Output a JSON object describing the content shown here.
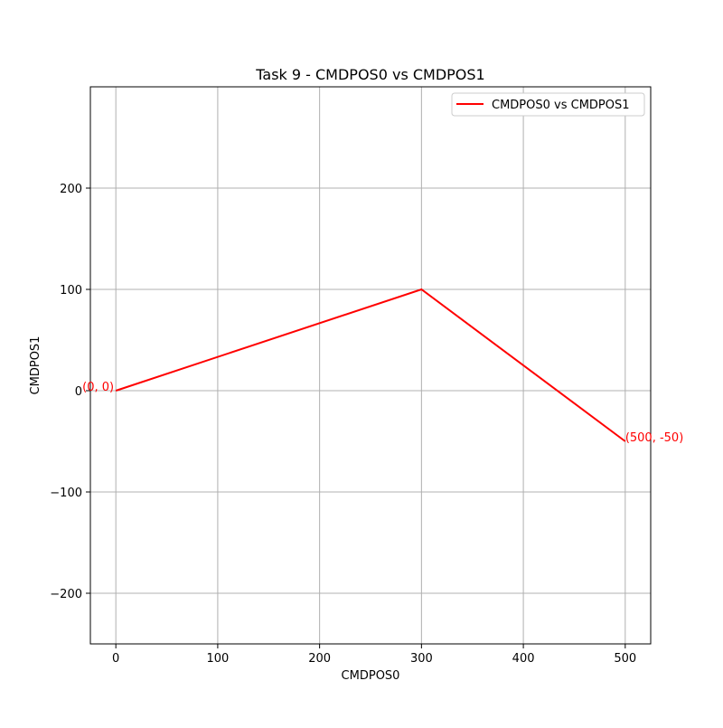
{
  "chart_data": {
    "type": "line",
    "title": "Task 9 - CMDPOS0 vs CMDPOS1",
    "xlabel": "CMDPOS0",
    "ylabel": "CMDPOS1",
    "xlim": [
      -25,
      525
    ],
    "ylim": [
      -250,
      300
    ],
    "xticks": [
      0,
      100,
      200,
      300,
      400,
      500
    ],
    "yticks": [
      -200,
      -100,
      0,
      100,
      200
    ],
    "grid": true,
    "legend_position": "top-right",
    "series": [
      {
        "name": "CMDPOS0 vs CMDPOS1",
        "color": "#ff0000",
        "x": [
          0,
          300,
          500
        ],
        "y": [
          0,
          100,
          -50
        ]
      }
    ],
    "annotations": [
      {
        "text": "(0, 0)",
        "x": 0,
        "y": 0,
        "color": "#ff0000"
      },
      {
        "text": "(500, -50)",
        "x": 500,
        "y": -50,
        "color": "#ff0000"
      }
    ]
  }
}
